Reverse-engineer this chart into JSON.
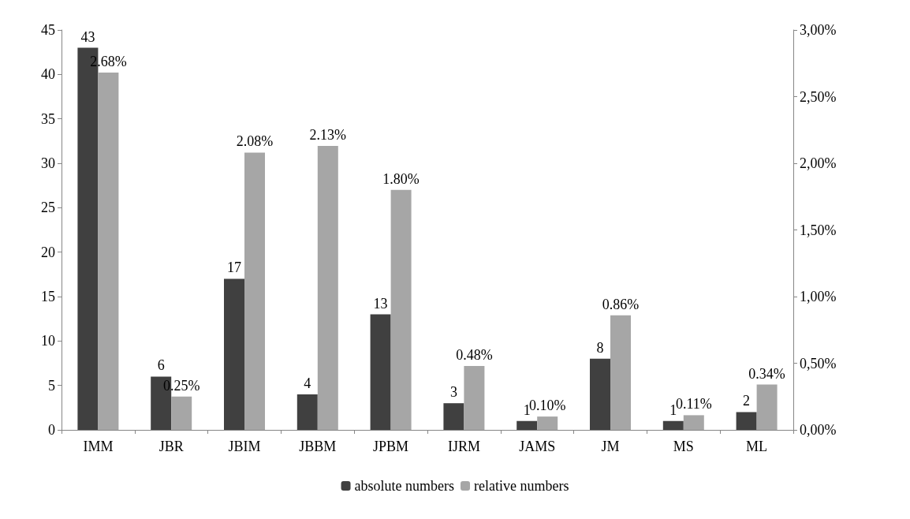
{
  "chart_data": {
    "type": "bar",
    "categories": [
      "IMM",
      "JBR",
      "JBIM",
      "JBBM",
      "JPBM",
      "IJRM",
      "JAMS",
      "JM",
      "MS",
      "ML"
    ],
    "series": [
      {
        "name": "absolute numbers",
        "color": "#404040",
        "values": [
          43,
          6,
          17,
          4,
          13,
          3,
          1,
          8,
          1,
          2
        ],
        "value_labels": [
          "43",
          "6",
          "17",
          "4",
          "13",
          "3",
          "1",
          "8",
          "1",
          "2"
        ]
      },
      {
        "name": "relative numbers",
        "color": "#a6a6a6",
        "axis": "y2",
        "values": [
          2.68,
          0.25,
          2.08,
          2.13,
          1.8,
          0.48,
          0.1,
          0.86,
          0.11,
          0.34
        ],
        "value_labels": [
          "2.68%",
          "0.25%",
          "2.08%",
          "2.13%",
          "1.80%",
          "0.48%",
          "0.10%",
          "0.86%",
          "0.11%",
          "0.34%"
        ]
      }
    ],
    "ylim": [
      0,
      45
    ],
    "yticks": [
      0,
      5,
      10,
      15,
      20,
      25,
      30,
      35,
      40,
      45
    ],
    "y2lim": [
      0,
      3
    ],
    "y2ticks": [
      {
        "value": 0,
        "label": "0,00%"
      },
      {
        "value": 0.5,
        "label": "0,50%"
      },
      {
        "value": 1,
        "label": "1,00%"
      },
      {
        "value": 1.5,
        "label": "1,50%"
      },
      {
        "value": 2,
        "label": "2,00%"
      },
      {
        "value": 2.5,
        "label": "2,50%"
      },
      {
        "value": 3,
        "label": "3,00%"
      }
    ],
    "grid": false,
    "legend": "bottom"
  }
}
